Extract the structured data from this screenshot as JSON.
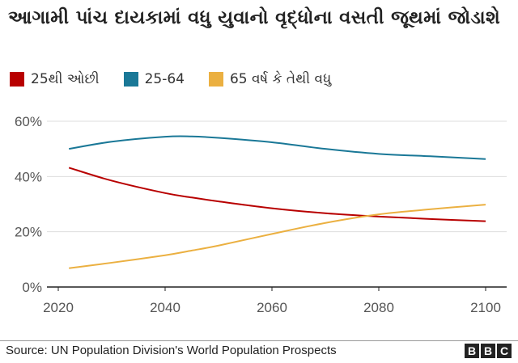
{
  "title": "આગામી પાંચ દાયકામાં વધુ યુવાનો વૃદ્ધોના વસતી જૂથમાં જોડાશે",
  "source": "Source: UN Population Division's World Population Prospects",
  "logo": "BBC",
  "chart_data": {
    "type": "line",
    "title": "આગામી પાંચ દાયકામાં વધુ યુવાનો વૃદ્ધોના વસતી જૂથમાં જોડાશે",
    "xlabel": "",
    "ylabel": "",
    "xlim": [
      2020,
      2100
    ],
    "ylim": [
      0,
      60
    ],
    "xticks": [
      "2020",
      "2040",
      "2060",
      "2080",
      "2100"
    ],
    "yticks": [
      "0%",
      "20%",
      "40%",
      "60%"
    ],
    "grid": true,
    "legend_position": "top-left",
    "x": [
      2022,
      2030,
      2040,
      2045,
      2050,
      2060,
      2070,
      2080,
      2090,
      2100
    ],
    "series": [
      {
        "name": "25થી ઓછી",
        "color": "#b80000",
        "values": [
          43.2,
          38.5,
          34.0,
          32.4,
          31.0,
          28.5,
          26.7,
          25.5,
          24.6,
          23.8
        ]
      },
      {
        "name": "25-64",
        "color": "#1a7897",
        "values": [
          50.0,
          52.6,
          54.4,
          54.5,
          54.0,
          52.4,
          50.0,
          48.2,
          47.3,
          46.3
        ]
      },
      {
        "name": "65 વર્ષ કે તેથી વધુ",
        "color": "#ebb041",
        "values": [
          6.8,
          8.8,
          11.5,
          13.2,
          15.0,
          19.2,
          23.2,
          26.3,
          28.2,
          29.8
        ]
      }
    ]
  }
}
